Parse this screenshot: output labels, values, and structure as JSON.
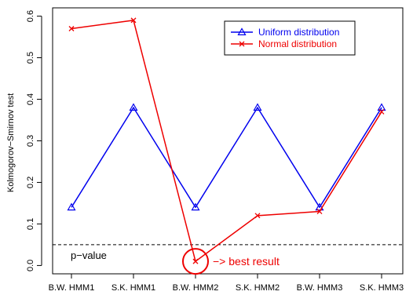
{
  "chart_data": {
    "type": "line",
    "ylabel": "Kolmogorov−Smirnov test",
    "xlabel": "",
    "categories": [
      "B.W. HMM1",
      "S.K. HMM1",
      "B.W. HMM2",
      "S.K. HMM2",
      "B.W. HMM3",
      "S.K. HMM3"
    ],
    "ylim": [
      -0.02,
      0.62
    ],
    "yticks": [
      0.0,
      0.1,
      0.2,
      0.3,
      0.4,
      0.5,
      0.6
    ],
    "ytick_labels": [
      "0.0",
      "0.1",
      "0.2",
      "0.3",
      "0.4",
      "0.5",
      "0.6"
    ],
    "series": [
      {
        "name": "Uniform distribution",
        "color": "#0000ee",
        "marker": "triangle",
        "values": [
          0.14,
          0.38,
          0.14,
          0.38,
          0.14,
          0.38
        ]
      },
      {
        "name": "Normal distribution",
        "color": "#ee0000",
        "marker": "x",
        "values": [
          0.57,
          0.59,
          0.01,
          0.12,
          0.13,
          0.37
        ]
      }
    ],
    "reference_line": {
      "y": 0.05,
      "label": "p−value",
      "style": "dashed",
      "color": "#000000"
    },
    "annotation": {
      "text": "−> best result",
      "category_index": 2,
      "series": "Normal distribution",
      "color": "#ee0000"
    },
    "legend": {
      "placement": "top-right"
    },
    "grid": false
  }
}
